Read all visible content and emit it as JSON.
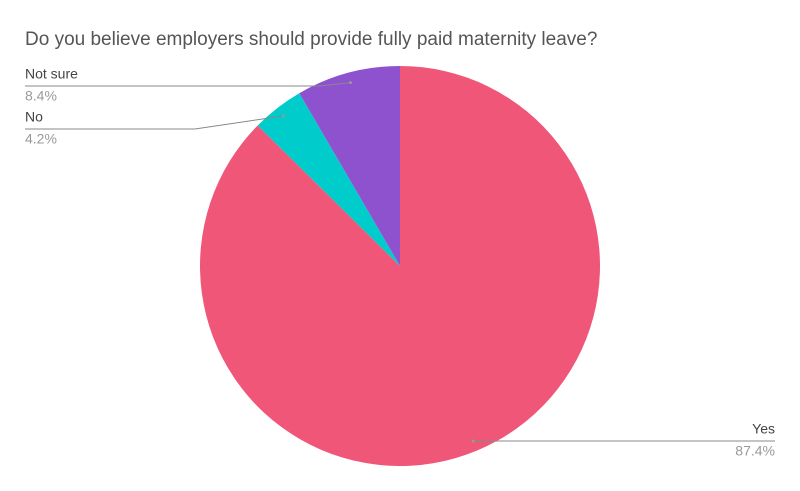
{
  "chart_data": {
    "type": "pie",
    "title": "Do you believe employers should provide fully paid maternity leave?",
    "categories": [
      "Yes",
      "No",
      "Not sure"
    ],
    "values": [
      87.4,
      4.2,
      8.4
    ],
    "value_labels": [
      "87.4%",
      "4.2%",
      "8.4%"
    ],
    "colors": [
      "#ef5678",
      "#00cccc",
      "#8e52cf"
    ]
  }
}
